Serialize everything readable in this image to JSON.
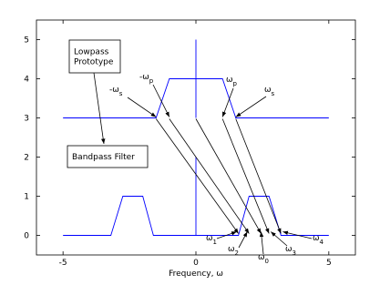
{
  "chart_data": {
    "type": "line",
    "xlabel": "Frequency, ω",
    "xlim": [
      -6,
      6
    ],
    "ylim": [
      -0.5,
      5.5
    ],
    "xticks": [
      -5,
      0,
      5
    ],
    "yticks": [
      0,
      1,
      2,
      3,
      4,
      5
    ],
    "series": [
      {
        "color": "#0000ff",
        "x": [
          -5,
          -1.5,
          -1,
          1,
          1.5,
          5
        ],
        "y": [
          3,
          3,
          4,
          4,
          3,
          3
        ]
      },
      {
        "color": "#0000ff",
        "x": [
          0,
          0
        ],
        "y": [
          3,
          5
        ]
      },
      {
        "color": "#0000ff",
        "x": [
          -5,
          -3.2,
          -2.75,
          -2,
          -1.6,
          1.6,
          2,
          2.75,
          3.2,
          5
        ],
        "y": [
          0,
          0,
          1,
          1,
          0,
          0,
          1,
          1,
          0,
          0
        ]
      },
      {
        "color": "#0000ff",
        "x": [
          0,
          0
        ],
        "y": [
          0,
          2
        ]
      }
    ],
    "mapping_arrows": [
      {
        "x": [
          -1.5,
          1.6
        ],
        "y": [
          3,
          0
        ]
      },
      {
        "x": [
          -1,
          2
        ],
        "y": [
          3,
          0
        ]
      },
      {
        "x": [
          0,
          2.45
        ],
        "y": [
          3,
          0
        ]
      },
      {
        "x": [
          1,
          2.75
        ],
        "y": [
          3,
          0
        ]
      },
      {
        "x": [
          1.5,
          3.2
        ],
        "y": [
          3,
          0
        ]
      }
    ],
    "top_labels": [
      {
        "text": "-ω",
        "sub": "s"
      },
      {
        "text": "-ω",
        "sub": "p"
      },
      {
        "text": "ω",
        "sub": "p"
      },
      {
        "text": "ω",
        "sub": "s"
      }
    ],
    "bottom_labels": [
      {
        "text": "ω",
        "sub": "1"
      },
      {
        "text": "ω",
        "sub": "2"
      },
      {
        "text": "ω",
        "sub": "0"
      },
      {
        "text": "ω",
        "sub": "3"
      },
      {
        "text": "ω",
        "sub": "4"
      }
    ],
    "boxes": [
      {
        "lines": [
          "Lowpass",
          "Prototype"
        ]
      },
      {
        "lines": [
          "Bandpass Filter"
        ]
      }
    ]
  }
}
